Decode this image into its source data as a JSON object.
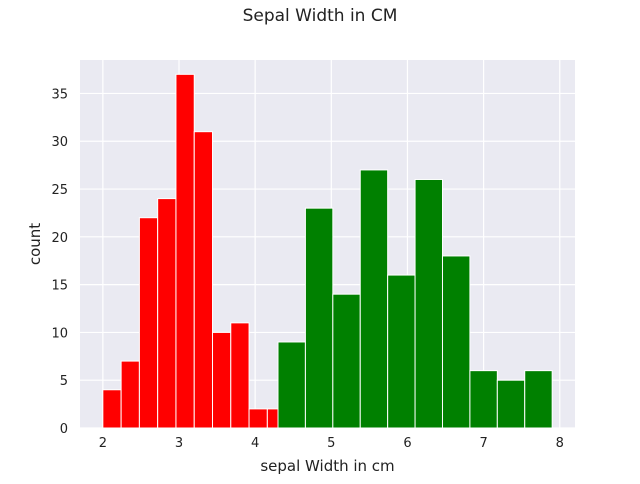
{
  "chart_data": {
    "type": "bar",
    "title": "Sepal Width in CM",
    "xlabel": "sepal Width in cm",
    "ylabel": "count",
    "xlim": [
      1.7,
      8.2
    ],
    "ylim": [
      0,
      38.5
    ],
    "xticks": [
      2,
      3,
      4,
      5,
      6,
      7,
      8
    ],
    "yticks": [
      0,
      5,
      10,
      15,
      20,
      25,
      30,
      35
    ],
    "grid": true,
    "background": "#eaeaf2",
    "series": [
      {
        "color": "#ff0000",
        "bins": [
          {
            "x0": 2.0,
            "x1": 2.24,
            "value": 4
          },
          {
            "x0": 2.24,
            "x1": 2.48,
            "value": 7
          },
          {
            "x0": 2.48,
            "x1": 2.72,
            "value": 22
          },
          {
            "x0": 2.72,
            "x1": 2.96,
            "value": 24
          },
          {
            "x0": 2.96,
            "x1": 3.2,
            "value": 37
          },
          {
            "x0": 3.2,
            "x1": 3.44,
            "value": 31
          },
          {
            "x0": 3.44,
            "x1": 3.68,
            "value": 10
          },
          {
            "x0": 3.68,
            "x1": 3.92,
            "value": 11
          },
          {
            "x0": 3.92,
            "x1": 4.16,
            "value": 2
          },
          {
            "x0": 4.16,
            "x1": 4.4,
            "value": 2
          }
        ]
      },
      {
        "color": "#008000",
        "bins": [
          {
            "x0": 4.3,
            "x1": 4.66,
            "value": 9
          },
          {
            "x0": 4.66,
            "x1": 5.02,
            "value": 23
          },
          {
            "x0": 5.02,
            "x1": 5.38,
            "value": 14
          },
          {
            "x0": 5.38,
            "x1": 5.74,
            "value": 27
          },
          {
            "x0": 5.74,
            "x1": 6.1,
            "value": 16
          },
          {
            "x0": 6.1,
            "x1": 6.46,
            "value": 26
          },
          {
            "x0": 6.46,
            "x1": 6.82,
            "value": 18
          },
          {
            "x0": 6.82,
            "x1": 7.18,
            "value": 6
          },
          {
            "x0": 7.18,
            "x1": 7.54,
            "value": 5
          },
          {
            "x0": 7.54,
            "x1": 7.9,
            "value": 6
          }
        ]
      }
    ]
  }
}
